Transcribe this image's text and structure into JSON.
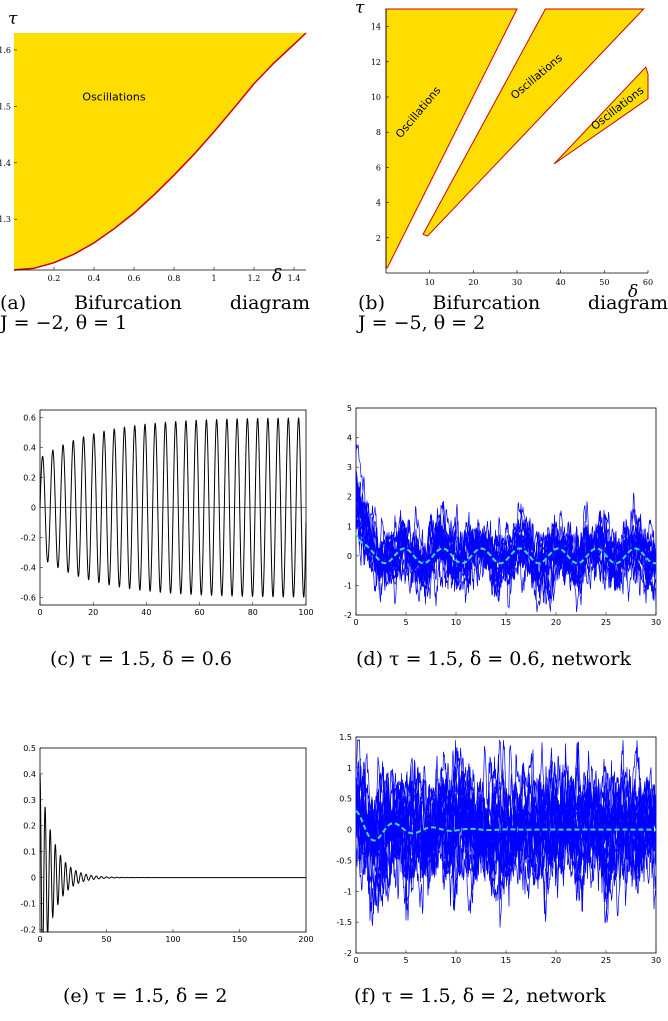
{
  "chart_data": [
    {
      "id": "a",
      "type": "area",
      "caption_line1": "(a) Bifurcation diagram",
      "caption_line2": "J = −2, θ = 1",
      "xlabel": "δ",
      "ylabel": "τ",
      "xlim": [
        0.0,
        1.46
      ],
      "ylim": [
        1.21,
        1.63
      ],
      "xticks": [
        "0.2",
        "0.4",
        "0.6",
        "0.8",
        "1",
        "1.2",
        "1.4"
      ],
      "xtick_values": [
        0.2,
        0.4,
        0.6,
        0.8,
        1.0,
        1.2,
        1.4
      ],
      "yticks": [
        "1.3",
        "1.4",
        "1.5",
        "1.6"
      ],
      "ytick_values": [
        1.3,
        1.4,
        1.5,
        1.6
      ],
      "fill_color": "#ffdd00",
      "boundary_color": "#cc0000",
      "annotation": "Oscillations",
      "boundary": {
        "x": [
          0.0,
          0.1,
          0.2,
          0.3,
          0.4,
          0.5,
          0.6,
          0.7,
          0.8,
          0.9,
          1.0,
          1.1,
          1.2,
          1.3,
          1.4,
          1.46
        ],
        "y": [
          1.21,
          1.213,
          1.223,
          1.238,
          1.258,
          1.283,
          1.311,
          1.343,
          1.378,
          1.415,
          1.455,
          1.497,
          1.54,
          1.577,
          1.61,
          1.63
        ]
      }
    },
    {
      "id": "b",
      "type": "area",
      "caption_line1": "(b) Bifurcation diagram",
      "caption_line2": "J = −5, θ = 2",
      "xlabel": "δ",
      "ylabel": "τ",
      "xlim": [
        0,
        60
      ],
      "ylim": [
        0,
        15
      ],
      "xticks": [
        "10",
        "20",
        "30",
        "40",
        "50",
        "60"
      ],
      "xtick_values": [
        10,
        20,
        30,
        40,
        50,
        60
      ],
      "yticks": [
        "2",
        "4",
        "6",
        "8",
        "10",
        "12",
        "14"
      ],
      "ytick_values": [
        2,
        4,
        6,
        8,
        10,
        12,
        14
      ],
      "fill_color": "#ffdd00",
      "boundary_color": "#cc0000",
      "annotation": "Oscillations",
      "regions": [
        {
          "x": [
            0,
            0,
            30,
            0.3,
            0
          ],
          "y": [
            0.3,
            15,
            15,
            0.3,
            0.3
          ]
        },
        {
          "x": [
            8.5,
            36.5,
            59,
            9.5,
            8.5
          ],
          "y": [
            2.2,
            15,
            15,
            2.1,
            2.2
          ]
        },
        {
          "x": [
            38.5,
            59.5,
            60,
            60,
            38.5
          ],
          "y": [
            6.2,
            11.7,
            11.3,
            9.9,
            6.2
          ]
        }
      ]
    },
    {
      "id": "c",
      "type": "line",
      "caption": "(c) τ = 1.5, δ = 0.6",
      "xlim": [
        0,
        100
      ],
      "ylim": [
        -0.65,
        0.65
      ],
      "xticks": [
        "0",
        "20",
        "40",
        "60",
        "80",
        "100"
      ],
      "xtick_values": [
        0,
        20,
        40,
        60,
        80,
        100
      ],
      "yticks": [
        "-0.6",
        "-0.4",
        "-0.2",
        "0",
        "0.2",
        "0.4",
        "0.6"
      ],
      "ytick_values": [
        -0.6,
        -0.4,
        -0.2,
        0,
        0.2,
        0.4,
        0.6
      ],
      "series": [
        {
          "initial_amplitude": 0.33,
          "final_amplitude": 0.6,
          "growth_rate": 0.045,
          "period": 3.85,
          "color": "#000000"
        }
      ]
    },
    {
      "id": "d",
      "type": "line",
      "caption": "(d) τ = 1.5, δ = 0.6, network",
      "xlim": [
        0,
        30
      ],
      "ylim": [
        -2,
        5
      ],
      "xticks": [
        "0",
        "5",
        "10",
        "15",
        "20",
        "25",
        "30"
      ],
      "xtick_values": [
        0,
        5,
        10,
        15,
        20,
        25,
        30
      ],
      "yticks": [
        "-2",
        "-1",
        "0",
        "1",
        "2",
        "3",
        "4",
        "5"
      ],
      "ytick_values": [
        -2,
        -1,
        0,
        1,
        2,
        3,
        4,
        5
      ],
      "network_color": "#0000ff",
      "mean_color": "#40e0d0",
      "mean_amplitude": 0.25,
      "period": 3.85,
      "noise_spread": 0.55
    },
    {
      "id": "e",
      "type": "line",
      "caption": "(e) τ = 1.5, δ = 2",
      "xlim": [
        0,
        200
      ],
      "ylim": [
        -0.21,
        0.5
      ],
      "xticks": [
        "0",
        "50",
        "100",
        "150",
        "200"
      ],
      "xtick_values": [
        0,
        50,
        100,
        150,
        200
      ],
      "yticks": [
        "-0.2",
        "-0.1",
        "0",
        "0.1",
        "0.2",
        "0.3",
        "0.4",
        "0.5"
      ],
      "ytick_values": [
        -0.2,
        -0.1,
        0,
        0.1,
        0.2,
        0.3,
        0.4,
        0.5
      ],
      "series": [
        {
          "initial_amplitude": 0.4,
          "decay_rate": 0.1,
          "period": 3.85,
          "color": "#000000"
        }
      ]
    },
    {
      "id": "f",
      "type": "line",
      "caption": "(f) τ = 1.5, δ = 2, network",
      "xlim": [
        0,
        30
      ],
      "ylim": [
        -2,
        1.5
      ],
      "xticks": [
        "0",
        "5",
        "10",
        "15",
        "20",
        "25",
        "30"
      ],
      "xtick_values": [
        0,
        5,
        10,
        15,
        20,
        25,
        30
      ],
      "yticks": [
        "-2",
        "-1.5",
        "-1",
        "-0.5",
        "0",
        "0.5",
        "1",
        "1.5"
      ],
      "ytick_values": [
        -2,
        -1.5,
        -1,
        -0.5,
        0,
        0.5,
        1,
        1.5
      ],
      "network_color": "#0000ff",
      "mean_color": "#40e0d0",
      "mean_amplitude": 0.3,
      "mean_decay": 0.28,
      "period": 3.85,
      "noise_spread": 0.55
    }
  ]
}
